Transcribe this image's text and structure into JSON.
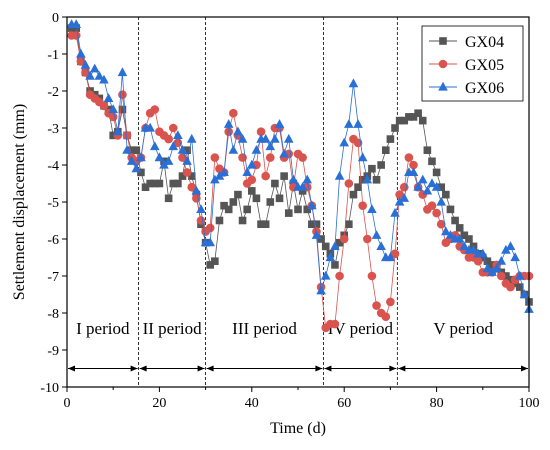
{
  "chart_data": {
    "type": "line",
    "xlabel": "Time (d)",
    "ylabel": "Settlement displacement (mm)",
    "xlim": [
      0,
      100
    ],
    "ylim": [
      -10,
      0
    ],
    "xticks": [
      0,
      20,
      40,
      60,
      80,
      100
    ],
    "yticks": [
      0,
      -1,
      -2,
      -3,
      -4,
      -5,
      -6,
      -7,
      -8,
      -9,
      -10
    ],
    "grid": false,
    "legend_position": "top-right",
    "periods": {
      "boundaries": [
        0,
        15.5,
        30,
        55.5,
        71.5,
        100
      ],
      "labels": [
        "I period",
        "II period",
        "III period",
        "IV period",
        "V period"
      ],
      "arrow_y": -9.5
    },
    "series": [
      {
        "name": "GX04",
        "color": "#555555",
        "marker": "square",
        "x": [
          1,
          2,
          3,
          4,
          5,
          6,
          7,
          8,
          9,
          10,
          11,
          12,
          13,
          14,
          15,
          16,
          17,
          18,
          19,
          20,
          21,
          22,
          23,
          24,
          25,
          26,
          27,
          28,
          29,
          30,
          31,
          32,
          33,
          34,
          35,
          36,
          37,
          38,
          39,
          40,
          41,
          42,
          43,
          44,
          45,
          46,
          47,
          48,
          49,
          50,
          51,
          52,
          53,
          54,
          55,
          56,
          57,
          58,
          59,
          60,
          61,
          62,
          63,
          64,
          65,
          66,
          67,
          68,
          69,
          70,
          71,
          72,
          73,
          74,
          75,
          76,
          77,
          78,
          79,
          80,
          81,
          82,
          83,
          84,
          85,
          86,
          87,
          88,
          89,
          90,
          91,
          92,
          93,
          94,
          95,
          96,
          97,
          98,
          99,
          100
        ],
        "values": [
          -0.3,
          -0.3,
          -1.2,
          -1.5,
          -2.0,
          -2.1,
          -2.2,
          -2.4,
          -2.5,
          -3.2,
          -3.1,
          -2.5,
          -3.2,
          -3.6,
          -3.6,
          -4.2,
          -4.6,
          -4.5,
          -4.5,
          -4.5,
          -3.9,
          -4.9,
          -4.5,
          -4.5,
          -4.3,
          -3.6,
          -4.3,
          -4.8,
          -5.6,
          -6.1,
          -6.7,
          -6.6,
          -5.5,
          -5.1,
          -5.2,
          -5.0,
          -4.8,
          -5.5,
          -5.2,
          -4.7,
          -4.9,
          -5.6,
          -5.6,
          -5.0,
          -4.5,
          -4.9,
          -4.3,
          -5.3,
          -4.5,
          -5.2,
          -4.7,
          -5.2,
          -5.6,
          -5.6,
          -6.0,
          -6.2,
          -6.4,
          -6.7,
          -6.1,
          -5.9,
          -5.6,
          -4.8,
          -4.6,
          -4.4,
          -4.3,
          -4.1,
          -4.4,
          -4.0,
          -3.6,
          -3.3,
          -3.0,
          -2.8,
          -2.8,
          -2.7,
          -2.7,
          -2.6,
          -2.8,
          -3.6,
          -3.9,
          -4.2,
          -4.6,
          -4.8,
          -5.2,
          -5.5,
          -5.7,
          -5.9,
          -6.0,
          -6.2,
          -6.4,
          -6.5,
          -6.6,
          -6.7,
          -6.8,
          -6.9,
          -7.0,
          -7.1,
          -7.2,
          -7.3,
          -7.5,
          -7.7
        ]
      },
      {
        "name": "GX05",
        "color": "#d9534f",
        "marker": "circle",
        "x": [
          1,
          2,
          3,
          4,
          5,
          6,
          7,
          8,
          9,
          10,
          11,
          12,
          13,
          14,
          15,
          16,
          17,
          18,
          19,
          20,
          21,
          22,
          23,
          24,
          25,
          26,
          27,
          28,
          29,
          30,
          31,
          32,
          33,
          34,
          35,
          36,
          37,
          38,
          39,
          40,
          41,
          42,
          43,
          44,
          45,
          46,
          47,
          48,
          49,
          50,
          51,
          52,
          53,
          54,
          55,
          56,
          57,
          58,
          59,
          60,
          61,
          62,
          63,
          64,
          65,
          66,
          67,
          68,
          69,
          70,
          71,
          72,
          73,
          74,
          75,
          76,
          77,
          78,
          79,
          80,
          81,
          82,
          83,
          84,
          85,
          86,
          87,
          88,
          89,
          90,
          91,
          92,
          93,
          94,
          95,
          96,
          97,
          98,
          99,
          100
        ],
        "values": [
          -0.5,
          -0.5,
          -1.2,
          -1.5,
          -2.1,
          -2.2,
          -2.3,
          -2.4,
          -2.6,
          -2.7,
          -3.2,
          -2.1,
          -3.2,
          -3.8,
          -3.9,
          -3.8,
          -3.0,
          -2.6,
          -2.5,
          -3.1,
          -3.2,
          -3.3,
          -3.0,
          -3.4,
          -3.8,
          -4.2,
          -4.6,
          -4.9,
          -5.5,
          -5.8,
          -5.7,
          -3.8,
          -4.1,
          -4.2,
          -3.1,
          -2.6,
          -3.2,
          -3.8,
          -4.5,
          -4.4,
          -4.0,
          -3.1,
          -4.3,
          -3.8,
          -3.0,
          -3.0,
          -3.8,
          -3.7,
          -4.6,
          -3.7,
          -3.8,
          -4.6,
          -5.1,
          -5.8,
          -7.3,
          -8.4,
          -8.3,
          -8.3,
          -7.0,
          -6.0,
          -4.5,
          -3.3,
          -3.4,
          -5.1,
          -6.0,
          -7.0,
          -7.8,
          -8.0,
          -8.1,
          -7.7,
          -6.4,
          -4.8,
          -4.6,
          -3.8,
          -4.0,
          -4.6,
          -4.8,
          -5.2,
          -5.1,
          -5.3,
          -5.6,
          -6.1,
          -6.0,
          -5.9,
          -6.2,
          -6.3,
          -6.5,
          -6.5,
          -6.6,
          -6.9,
          -6.9,
          -6.9,
          -6.7,
          -7.0,
          -7.2,
          -7.3,
          -7.1,
          -7.0,
          -7.0,
          -7.0
        ]
      },
      {
        "name": "GX06",
        "color": "#2a6fd6",
        "marker": "triangle",
        "x": [
          1,
          2,
          3,
          4,
          5,
          6,
          7,
          8,
          9,
          10,
          11,
          12,
          13,
          14,
          15,
          16,
          17,
          18,
          19,
          20,
          21,
          22,
          23,
          24,
          25,
          26,
          27,
          28,
          29,
          30,
          31,
          32,
          33,
          34,
          35,
          36,
          37,
          38,
          39,
          40,
          41,
          42,
          43,
          44,
          45,
          46,
          47,
          48,
          49,
          50,
          51,
          52,
          53,
          54,
          55,
          56,
          57,
          58,
          59,
          60,
          61,
          62,
          63,
          64,
          65,
          66,
          67,
          68,
          69,
          70,
          71,
          72,
          73,
          74,
          75,
          76,
          77,
          78,
          79,
          80,
          81,
          82,
          83,
          84,
          85,
          86,
          87,
          88,
          89,
          90,
          91,
          92,
          93,
          94,
          95,
          96,
          97,
          98,
          99,
          100
        ],
        "values": [
          -0.2,
          -0.2,
          -1.0,
          -1.3,
          -1.6,
          -1.4,
          -1.6,
          -1.7,
          -2.2,
          -2.5,
          -3.1,
          -1.5,
          -3.6,
          -3.9,
          -4.1,
          -3.8,
          -3.0,
          -3.0,
          -3.5,
          -3.8,
          -4.0,
          -3.9,
          -3.5,
          -3.2,
          -3.6,
          -3.9,
          -3.3,
          -4.7,
          -5.2,
          -6.1,
          -6.1,
          -4.4,
          -4.3,
          -4.2,
          -2.9,
          -3.6,
          -3.1,
          -3.3,
          -4.2,
          -4.0,
          -3.6,
          -3.3,
          -3.3,
          -3.5,
          -3.3,
          -2.9,
          -3.7,
          -3.3,
          -4.4,
          -4.6,
          -4.6,
          -4.4,
          -5.1,
          -5.9,
          -7.4,
          -7.0,
          -6.5,
          -6.2,
          -4.3,
          -3.4,
          -2.9,
          -1.8,
          -2.9,
          -3.8,
          -4.4,
          -5.2,
          -5.9,
          -6.2,
          -6.5,
          -6.5,
          -5.3,
          -5.0,
          -4.9,
          -4.2,
          -4.2,
          -4.6,
          -4.4,
          -4.7,
          -4.5,
          -4.6,
          -5.0,
          -5.8,
          -5.9,
          -6.0,
          -6.0,
          -6.2,
          -6.3,
          -6.3,
          -6.4,
          -6.4,
          -6.8,
          -6.9,
          -6.8,
          -6.6,
          -6.3,
          -6.2,
          -6.5,
          -7.0,
          -7.5,
          -7.9
        ]
      }
    ]
  }
}
